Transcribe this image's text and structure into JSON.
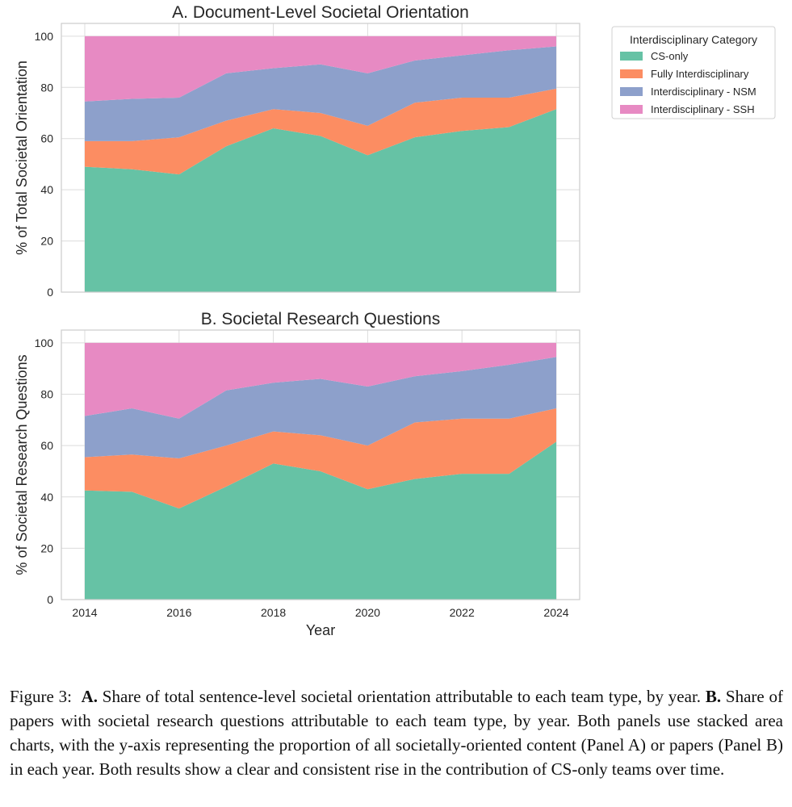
{
  "chart_data": [
    {
      "type": "area",
      "stacked": true,
      "title": "A. Document-Level Societal Orientation",
      "xlabel": "",
      "ylabel": "% of Total Societal Orientation",
      "x": [
        2014,
        2015,
        2016,
        2017,
        2018,
        2019,
        2020,
        2021,
        2022,
        2023,
        2024
      ],
      "xlim": [
        2014,
        2024
      ],
      "ylim": [
        0,
        105
      ],
      "yticks": [
        0,
        20,
        40,
        60,
        80,
        100
      ],
      "grid": true,
      "series": [
        {
          "name": "CS-only",
          "color": "#66c2a5",
          "values": [
            49,
            48,
            46,
            57,
            64,
            61,
            53.5,
            60.5,
            63,
            64.5,
            71.5
          ]
        },
        {
          "name": "Fully Interdisciplinary",
          "color": "#fc8d62",
          "values": [
            10,
            11,
            14.5,
            10,
            7.5,
            9,
            11.5,
            13.5,
            13,
            11.5,
            8
          ]
        },
        {
          "name": "Interdisciplinary - NSM",
          "color": "#8da0cb",
          "values": [
            15.5,
            16.5,
            15.5,
            18.5,
            16,
            19,
            20.5,
            16.5,
            16.5,
            18.5,
            16.5
          ]
        },
        {
          "name": "Interdisciplinary - SSH",
          "color": "#e78ac3",
          "values": [
            25.5,
            24.5,
            24,
            14.5,
            12.5,
            11,
            14.5,
            9.5,
            7.5,
            5.5,
            4
          ]
        }
      ]
    },
    {
      "type": "area",
      "stacked": true,
      "title": "B. Societal Research Questions",
      "xlabel": "Year",
      "ylabel": "% of Societal Research Questions",
      "x": [
        2014,
        2015,
        2016,
        2017,
        2018,
        2019,
        2020,
        2021,
        2022,
        2023,
        2024
      ],
      "xlim": [
        2014,
        2024
      ],
      "xticks": [
        2014,
        2016,
        2018,
        2020,
        2022,
        2024
      ],
      "ylim": [
        0,
        105
      ],
      "yticks": [
        0,
        20,
        40,
        60,
        80,
        100
      ],
      "grid": true,
      "series": [
        {
          "name": "CS-only",
          "color": "#66c2a5",
          "values": [
            42.5,
            42,
            35.5,
            44,
            53,
            50,
            43,
            47,
            49,
            49,
            61.5
          ]
        },
        {
          "name": "Fully Interdisciplinary",
          "color": "#fc8d62",
          "values": [
            13,
            14.5,
            19.5,
            16,
            12.5,
            14,
            17,
            22,
            21.5,
            21.5,
            13
          ]
        },
        {
          "name": "Interdisciplinary - NSM",
          "color": "#8da0cb",
          "values": [
            16,
            18,
            15.5,
            21.5,
            19,
            22,
            23,
            18,
            18.5,
            21,
            20
          ]
        },
        {
          "name": "Interdisciplinary - SSH",
          "color": "#e78ac3",
          "values": [
            28.5,
            25.5,
            29.5,
            18.5,
            15.5,
            14,
            17,
            13,
            11,
            8.5,
            5.5
          ]
        }
      ]
    }
  ],
  "legend": {
    "title": "Interdisciplinary Category",
    "placement": "outside-right-top",
    "items": [
      "CS-only",
      "Fully Interdisciplinary",
      "Interdisciplinary - NSM",
      "Interdisciplinary - SSH"
    ]
  },
  "caption": {
    "label": "Figure 3:",
    "a_label": "A.",
    "a_text": "Share of total sentence-level societal orientation attributable to each team type, by year.",
    "b_label": "B.",
    "b_text": "Share of papers with societal research questions attributable to each team type, by year. Both panels use stacked area charts, with the y-axis representing the proportion of all societally-oriented content (Panel A) or papers (Panel B) in each year. Both results show a clear and consistent rise in the contribution of CS-only teams over time."
  }
}
